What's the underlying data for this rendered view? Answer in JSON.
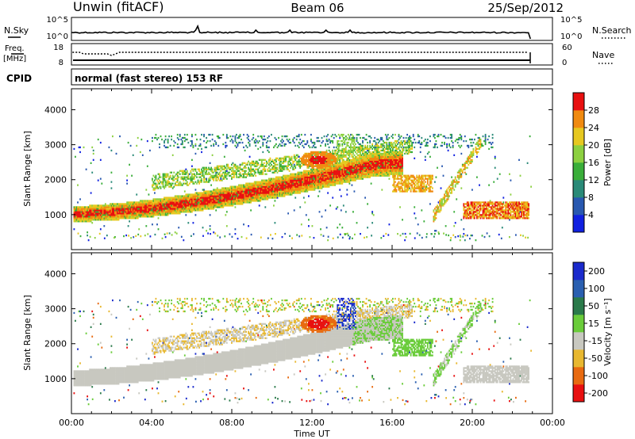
{
  "header": {
    "left": "Unwin (fitACF)",
    "center": "Beam 06",
    "right": "25/Sep/2012"
  },
  "noise_panel": {
    "left_label": "N.Sky",
    "right_label": "N.Search",
    "left_ticks": [
      "10^5",
      "10^0"
    ],
    "right_ticks": [
      "10^5",
      "10^0"
    ]
  },
  "freq_panel": {
    "left_label_line1": "Freq.",
    "left_label_line2": "[MHz]",
    "right_label": "Nave",
    "left_ticks": [
      "18",
      "8"
    ],
    "right_ticks": [
      "60",
      "0"
    ]
  },
  "cpid": {
    "label": "CPID",
    "value": "normal (fast stereo) 153 RF"
  },
  "chart_data": [
    {
      "type": "heatmap",
      "name": "power-panel",
      "ylabel": "Slant Range [km]",
      "ylim": [
        0,
        4600
      ],
      "yticks": [
        1000,
        2000,
        3000,
        4000
      ],
      "xlim": [
        0,
        24
      ],
      "xticks": [
        "00:00",
        "04:00",
        "08:00",
        "12:00",
        "16:00",
        "20:00",
        "00:00"
      ],
      "colorbar": {
        "label": "Power [dB]",
        "ticks": [
          4,
          8,
          12,
          16,
          20,
          24,
          28
        ],
        "colors": [
          "#1020e0",
          "#2858b0",
          "#2a8a78",
          "#3aae3a",
          "#8cd040",
          "#e6c820",
          "#f08a10",
          "#e81010"
        ]
      }
    },
    {
      "type": "heatmap",
      "name": "velocity-panel",
      "ylabel": "Slant Range [km]",
      "ylim": [
        0,
        4600
      ],
      "yticks": [
        1000,
        2000,
        3000,
        4000
      ],
      "xlim": [
        0,
        24
      ],
      "xticks": [
        "00:00",
        "04:00",
        "08:00",
        "12:00",
        "16:00",
        "20:00",
        "00:00"
      ],
      "xlabel": "Time UT",
      "colorbar": {
        "label": "Velocity [m s⁻¹]",
        "ticks": [
          200,
          100,
          50,
          15,
          -15,
          -50,
          -100,
          -200
        ],
        "colors": [
          "#1a2acc",
          "#2a5fb0",
          "#2a7a4a",
          "#6acc3a",
          "#c8c8c0",
          "#e8b830",
          "#e86a10",
          "#e81010"
        ]
      }
    }
  ]
}
